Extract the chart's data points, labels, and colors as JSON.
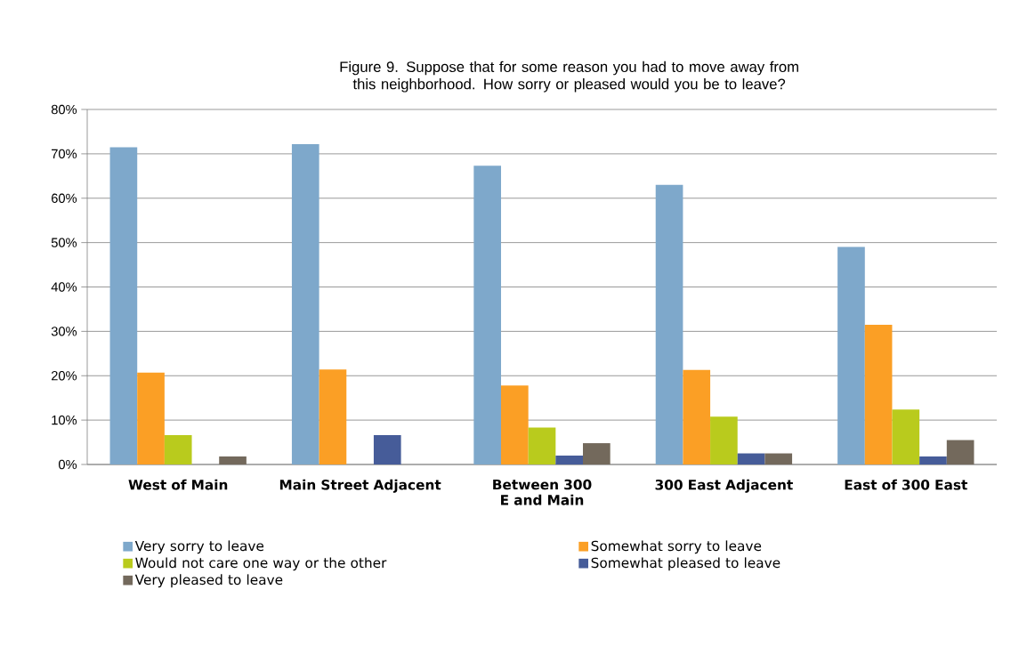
{
  "chart_data": {
    "type": "bar",
    "title": "Figure 9. Suppose that for some reason you had to move away from this neighborhood.  How sorry or pleased would you be to leave?",
    "categories": [
      "West of Main",
      "Main Street Adjacent",
      "Between 300 E and Main",
      "300 East Adjacent",
      "East of 300 East"
    ],
    "series": [
      {
        "name": "Very sorry to leave",
        "color": "#7ea8cb",
        "values": [
          71.5,
          72.2,
          67.3,
          63.0,
          49.0
        ]
      },
      {
        "name": "Somewhat sorry to leave",
        "color": "#fb9f25",
        "values": [
          20.7,
          21.4,
          17.8,
          21.3,
          31.5
        ]
      },
      {
        "name": "Would not care one way or the other",
        "color": "#b9cb1d",
        "values": [
          6.6,
          0,
          8.3,
          10.8,
          12.4
        ]
      },
      {
        "name": "Somewhat pleased to leave",
        "color": "#465c99",
        "values": [
          0,
          6.6,
          2.0,
          2.5,
          1.8
        ]
      },
      {
        "name": "Very pleased to leave",
        "color": "#73695c",
        "values": [
          1.8,
          0,
          4.8,
          2.5,
          5.5
        ]
      }
    ],
    "ylim": [
      0,
      80
    ],
    "yticks": [
      {
        "value": 0,
        "label": "0%"
      },
      {
        "value": 10,
        "label": "10%"
      },
      {
        "value": 20,
        "label": "20%"
      },
      {
        "value": 30,
        "label": "30%"
      },
      {
        "value": 40,
        "label": "40%"
      },
      {
        "value": 50,
        "label": "50%"
      },
      {
        "value": 60,
        "label": "60%"
      },
      {
        "value": 70,
        "label": "70%"
      },
      {
        "value": 80,
        "label": "80%"
      }
    ],
    "grid": "y",
    "legend": "bottom"
  }
}
